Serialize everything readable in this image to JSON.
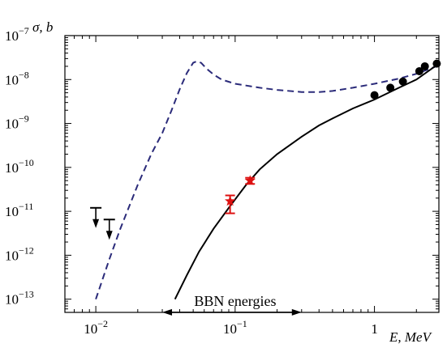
{
  "chart_data": {
    "type": "line",
    "x_scale": "log",
    "y_scale": "log",
    "xlim": [
      0.006,
      2.9
    ],
    "ylim": [
      5e-14,
      1e-07
    ],
    "ylabel": "σ, b",
    "xlabel": "E, MeV",
    "x_ticks": [
      {
        "value": 0.01,
        "base": "10",
        "exp": "−2"
      },
      {
        "value": 0.1,
        "base": "10",
        "exp": "−1"
      },
      {
        "value": 1,
        "base": "1",
        "exp": ""
      }
    ],
    "y_ticks": [
      {
        "value": 1e-13,
        "base": "10",
        "exp": "−13"
      },
      {
        "value": 1e-12,
        "base": "10",
        "exp": "−12"
      },
      {
        "value": 1e-11,
        "base": "10",
        "exp": "−11"
      },
      {
        "value": 1e-10,
        "base": "10",
        "exp": "−10"
      },
      {
        "value": 1e-09,
        "base": "10",
        "exp": "−9"
      },
      {
        "value": 1e-08,
        "base": "10",
        "exp": "−8"
      },
      {
        "value": 1e-07,
        "base": "10",
        "exp": "−7"
      }
    ],
    "series": [
      {
        "style": "dashed",
        "color": "#2b2b7a",
        "x": [
          0.01,
          0.0125,
          0.015,
          0.02,
          0.025,
          0.03,
          0.035,
          0.04,
          0.045,
          0.05,
          0.053,
          0.057,
          0.062,
          0.07,
          0.08,
          0.1,
          0.15,
          0.2,
          0.3,
          0.4,
          0.5,
          0.7,
          1.0,
          1.5,
          2.0,
          2.9
        ],
        "y": [
          1e-13,
          8e-13,
          4e-12,
          4e-11,
          2e-10,
          6e-10,
          2e-09,
          6e-09,
          1.4e-08,
          2.4e-08,
          2.6e-08,
          2.4e-08,
          1.8e-08,
          1.3e-08,
          1e-08,
          8e-09,
          6.5e-09,
          5.8e-09,
          5.2e-09,
          5.2e-09,
          5.5e-09,
          6.5e-09,
          8e-09,
          1.05e-08,
          1.35e-08,
          2.1e-08
        ]
      },
      {
        "style": "solid",
        "color": "#000000",
        "x": [
          0.037,
          0.045,
          0.055,
          0.07,
          0.09,
          0.12,
          0.15,
          0.2,
          0.3,
          0.4,
          0.5,
          0.7,
          1.0,
          1.5,
          2.0,
          2.9
        ],
        "y": [
          1e-13,
          3.5e-13,
          1.2e-12,
          4e-12,
          1.2e-11,
          4e-11,
          9e-11,
          2e-10,
          5e-10,
          9e-10,
          1.3e-09,
          2.2e-09,
          3.5e-09,
          6.5e-09,
          1e-08,
          2.3e-08
        ]
      }
    ],
    "points_circles": {
      "color": "#000000",
      "x": [
        1.0,
        1.3,
        1.6,
        2.1,
        2.3,
        2.8
      ],
      "y": [
        4.4e-09,
        6.5e-09,
        9e-09,
        1.55e-08,
        2e-08,
        2.3e-08
      ]
    },
    "points_stars": {
      "color": "#dd1111",
      "x": [
        0.092,
        0.128
      ],
      "y": [
        1.7e-11,
        5e-11
      ],
      "err_low": [
        9e-12,
        4.2e-11
      ],
      "err_high": [
        2.3e-11,
        5.8e-11
      ]
    },
    "upper_limits": {
      "color": "#000000",
      "x": [
        0.01,
        0.0125
      ],
      "y": [
        1.2e-11,
        6.5e-12
      ]
    },
    "annotation": {
      "text": "BBN energies",
      "x_from": 0.03,
      "x_to": 0.3,
      "y": 8e-14
    }
  }
}
